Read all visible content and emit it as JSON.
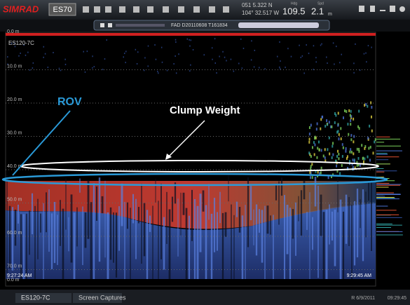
{
  "toolbar": {
    "brand": "SIMRAD",
    "model": "ES70",
    "lat": "051 5.322 N",
    "lon": "104° 32.517 W",
    "hdg_label": "Hdg",
    "hdg": "109.5",
    "spd_label": "Spd",
    "spd": "2.1",
    "spd_unit": "m"
  },
  "file": "FAD D20110608 T161834",
  "echogram": {
    "channel": "ES120-7C",
    "depth_labels": [
      "0.0 m",
      "10.0 m",
      "20.0 m",
      "30.0 m",
      "40.0 m",
      "50.0 m",
      "60.0 m",
      "70.0 m",
      "0.0 m"
    ],
    "start_time": "9:27:24 AM",
    "end_time": "9:29:45 AM"
  },
  "annotations": {
    "rov": "ROV",
    "clump": "Clump Weight"
  },
  "footer": {
    "tabs": [
      "ES120-7C",
      "Screen Captures"
    ],
    "date": "R 6/9/2011",
    "time": "09:29:45"
  }
}
